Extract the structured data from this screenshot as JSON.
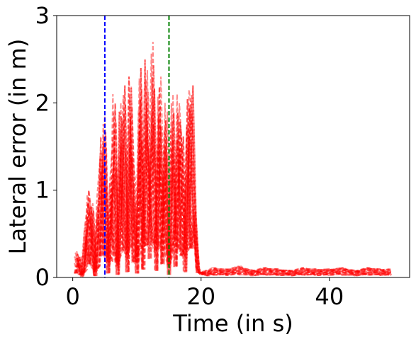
{
  "chart_data": {
    "type": "line",
    "title": "",
    "xlabel": "Time (in s)",
    "ylabel": "Lateral error (in m)",
    "xlim": [
      -2.5,
      52.5
    ],
    "ylim": [
      0,
      3
    ],
    "xticks": [
      0,
      20,
      40
    ],
    "yticks": [
      0,
      1,
      2,
      3
    ],
    "grid": false,
    "legend": "none",
    "vlines": [
      {
        "x": 5,
        "color": "#0000ff",
        "style": "dashed"
      },
      {
        "x": 15,
        "color": "#008000",
        "style": "dashed"
      }
    ],
    "series_style": {
      "color": "#ff0000",
      "opacity": 0.45,
      "style": "dashed",
      "count": 20
    },
    "series_profile": {
      "x": [
        0.5,
        1.0,
        1.5,
        2.0,
        2.5,
        3.0,
        3.5,
        4.0,
        4.5,
        5.0,
        5.5,
        6.0,
        6.5,
        7.0,
        7.5,
        8.0,
        8.5,
        9.0,
        9.5,
        10.0,
        10.5,
        11.0,
        11.5,
        12.0,
        12.5,
        13.0,
        13.5,
        14.0,
        14.5,
        15.0,
        15.5,
        16.0,
        16.5,
        17.0,
        17.5,
        18.0,
        18.5,
        19.0,
        19.5,
        20.0,
        21.0,
        22.0,
        24.0,
        26.0,
        28.0,
        30.0,
        32.0,
        34.0,
        36.0,
        38.0,
        40.0,
        42.0,
        44.0,
        46.0,
        48.0,
        49.5
      ],
      "y": [
        0.3,
        0.25,
        0.05,
        0.6,
        1.0,
        0.85,
        0.1,
        0.9,
        1.6,
        1.85,
        0.3,
        1.2,
        2.1,
        0.2,
        2.0,
        2.2,
        0.4,
        2.3,
        1.2,
        0.3,
        2.4,
        0.6,
        2.5,
        1.4,
        2.7,
        0.5,
        2.3,
        1.0,
        2.0,
        0.2,
        2.1,
        0.8,
        2.1,
        1.7,
        0.4,
        2.15,
        2.2,
        0.8,
        0.1,
        0.06,
        0.05,
        0.07,
        0.06,
        0.08,
        0.05,
        0.07,
        0.06,
        0.05,
        0.07,
        0.06,
        0.06,
        0.07,
        0.05,
        0.07,
        0.06,
        0.06
      ]
    }
  }
}
